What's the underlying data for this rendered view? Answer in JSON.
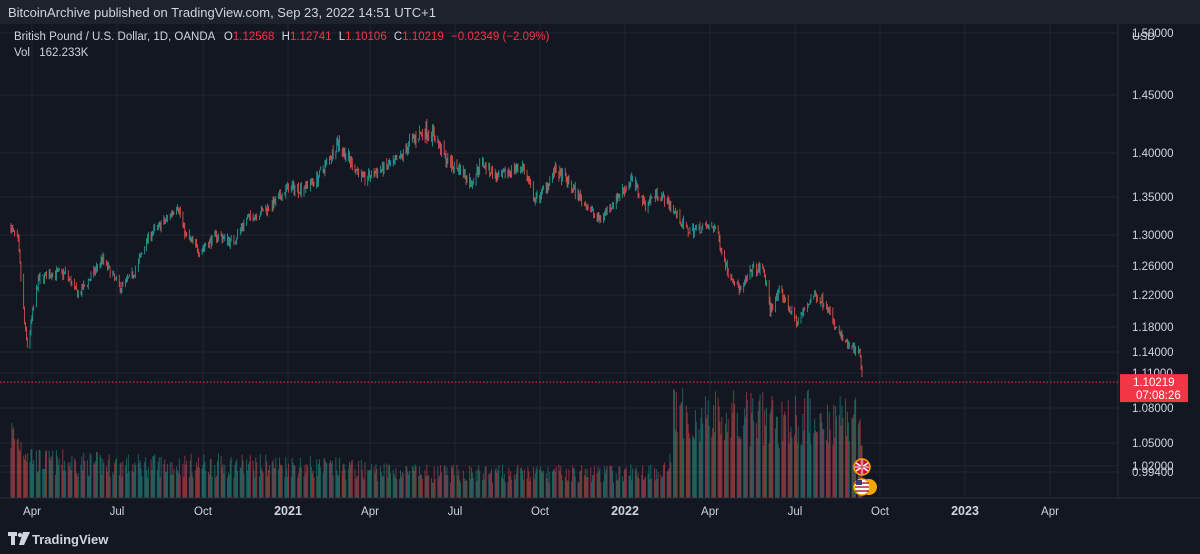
{
  "header": {
    "publisher_line": "BitcoinArchive published on TradingView.com, Sep 23, 2022 14:51 UTC+1"
  },
  "legend": {
    "symbol": "British Pound / U.S. Dollar, 1D, OANDA",
    "o_label": "O",
    "o_value": "1.12568",
    "h_label": "H",
    "h_value": "1.12741",
    "l_label": "L",
    "l_value": "1.10106",
    "c_label": "C",
    "c_value": "1.10219",
    "change": "−0.02349 (−2.09%)",
    "vol_label": "Vol",
    "vol_value": "162.233K"
  },
  "price_axis": {
    "currency": "USD",
    "ticks": [
      "1.50000",
      "1.45000",
      "1.40000",
      "1.35000",
      "1.30000",
      "1.26000",
      "1.22000",
      "1.18000",
      "1.14000",
      "1.11000",
      "1.08000",
      "1.05000",
      "1.02000",
      "0.99400"
    ],
    "last_price": "1.10219",
    "countdown": "07:08:26"
  },
  "time_axis": {
    "labels": [
      "Apr",
      "Jul",
      "Oct",
      "2021",
      "Apr",
      "Jul",
      "Oct",
      "2022",
      "Apr",
      "Jul",
      "Oct",
      "2023",
      "Apr"
    ],
    "bold": [
      "2021",
      "2022",
      "2023"
    ]
  },
  "footer": {
    "brand": "TradingView"
  },
  "colors": {
    "up": "#26a69a",
    "down": "#ef5350",
    "bg": "#131722",
    "grid": "#1f2431",
    "last_price": "#f23645"
  },
  "chart_data": {
    "type": "candlestick",
    "symbol": "GBPUSD",
    "timeframe": "1D",
    "x_range": [
      "2020-03-01",
      "2023-05-15"
    ],
    "y_range": [
      0.994,
      1.5
    ],
    "last_price": 1.10219,
    "close_path": [
      [
        "2020-03-02",
        1.31
      ],
      [
        "2020-03-10",
        1.29
      ],
      [
        "2020-03-18",
        1.17
      ],
      [
        "2020-03-20",
        1.15
      ],
      [
        "2020-03-25",
        1.19
      ],
      [
        "2020-04-01",
        1.24
      ],
      [
        "2020-04-15",
        1.25
      ],
      [
        "2020-05-01",
        1.25
      ],
      [
        "2020-05-15",
        1.22
      ],
      [
        "2020-06-01",
        1.25
      ],
      [
        "2020-06-10",
        1.27
      ],
      [
        "2020-06-30",
        1.23
      ],
      [
        "2020-07-15",
        1.25
      ],
      [
        "2020-08-01",
        1.3
      ],
      [
        "2020-08-20",
        1.32
      ],
      [
        "2020-09-01",
        1.34
      ],
      [
        "2020-09-10",
        1.3
      ],
      [
        "2020-09-25",
        1.28
      ],
      [
        "2020-10-15",
        1.3
      ],
      [
        "2020-11-01",
        1.29
      ],
      [
        "2020-11-15",
        1.32
      ],
      [
        "2020-12-01",
        1.33
      ],
      [
        "2020-12-15",
        1.34
      ],
      [
        "2020-12-31",
        1.36
      ],
      [
        "2021-01-15",
        1.36
      ],
      [
        "2021-02-01",
        1.37
      ],
      [
        "2021-02-24",
        1.41
      ],
      [
        "2021-03-10",
        1.39
      ],
      [
        "2021-03-25",
        1.37
      ],
      [
        "2021-04-10",
        1.38
      ],
      [
        "2021-05-01",
        1.39
      ],
      [
        "2021-05-15",
        1.41
      ],
      [
        "2021-06-01",
        1.42
      ],
      [
        "2021-06-10",
        1.415
      ],
      [
        "2021-06-25",
        1.39
      ],
      [
        "2021-07-10",
        1.38
      ],
      [
        "2021-07-20",
        1.365
      ],
      [
        "2021-08-01",
        1.39
      ],
      [
        "2021-08-20",
        1.37
      ],
      [
        "2021-09-01",
        1.38
      ],
      [
        "2021-09-15",
        1.385
      ],
      [
        "2021-09-29",
        1.345
      ],
      [
        "2021-10-10",
        1.36
      ],
      [
        "2021-10-20",
        1.38
      ],
      [
        "2021-11-01",
        1.37
      ],
      [
        "2021-11-20",
        1.345
      ],
      [
        "2021-12-08",
        1.32
      ],
      [
        "2021-12-31",
        1.353
      ],
      [
        "2022-01-13",
        1.37
      ],
      [
        "2022-01-28",
        1.34
      ],
      [
        "2022-02-10",
        1.355
      ],
      [
        "2022-02-24",
        1.34
      ],
      [
        "2022-03-15",
        1.305
      ],
      [
        "2022-04-01",
        1.31
      ],
      [
        "2022-04-15",
        1.31
      ],
      [
        "2022-04-28",
        1.255
      ],
      [
        "2022-05-13",
        1.225
      ],
      [
        "2022-05-25",
        1.255
      ],
      [
        "2022-06-07",
        1.255
      ],
      [
        "2022-06-14",
        1.202
      ],
      [
        "2022-06-25",
        1.225
      ],
      [
        "2022-07-14",
        1.185
      ],
      [
        "2022-07-31",
        1.22
      ],
      [
        "2022-08-15",
        1.21
      ],
      [
        "2022-08-24",
        1.18
      ],
      [
        "2022-09-07",
        1.15
      ],
      [
        "2022-09-20",
        1.14
      ],
      [
        "2022-09-23",
        1.10219
      ]
    ],
    "volume_profile": [
      [
        "2020-03-01",
        0.8
      ],
      [
        "2020-04-01",
        0.45
      ],
      [
        "2020-07-01",
        0.4
      ],
      [
        "2020-12-31",
        0.4
      ],
      [
        "2021-06-01",
        0.3
      ],
      [
        "2021-12-31",
        0.3
      ],
      [
        "2022-02-23",
        0.35
      ],
      [
        "2022-02-28",
        1.0
      ],
      [
        "2022-06-01",
        0.95
      ],
      [
        "2022-09-23",
        1.0
      ]
    ]
  }
}
